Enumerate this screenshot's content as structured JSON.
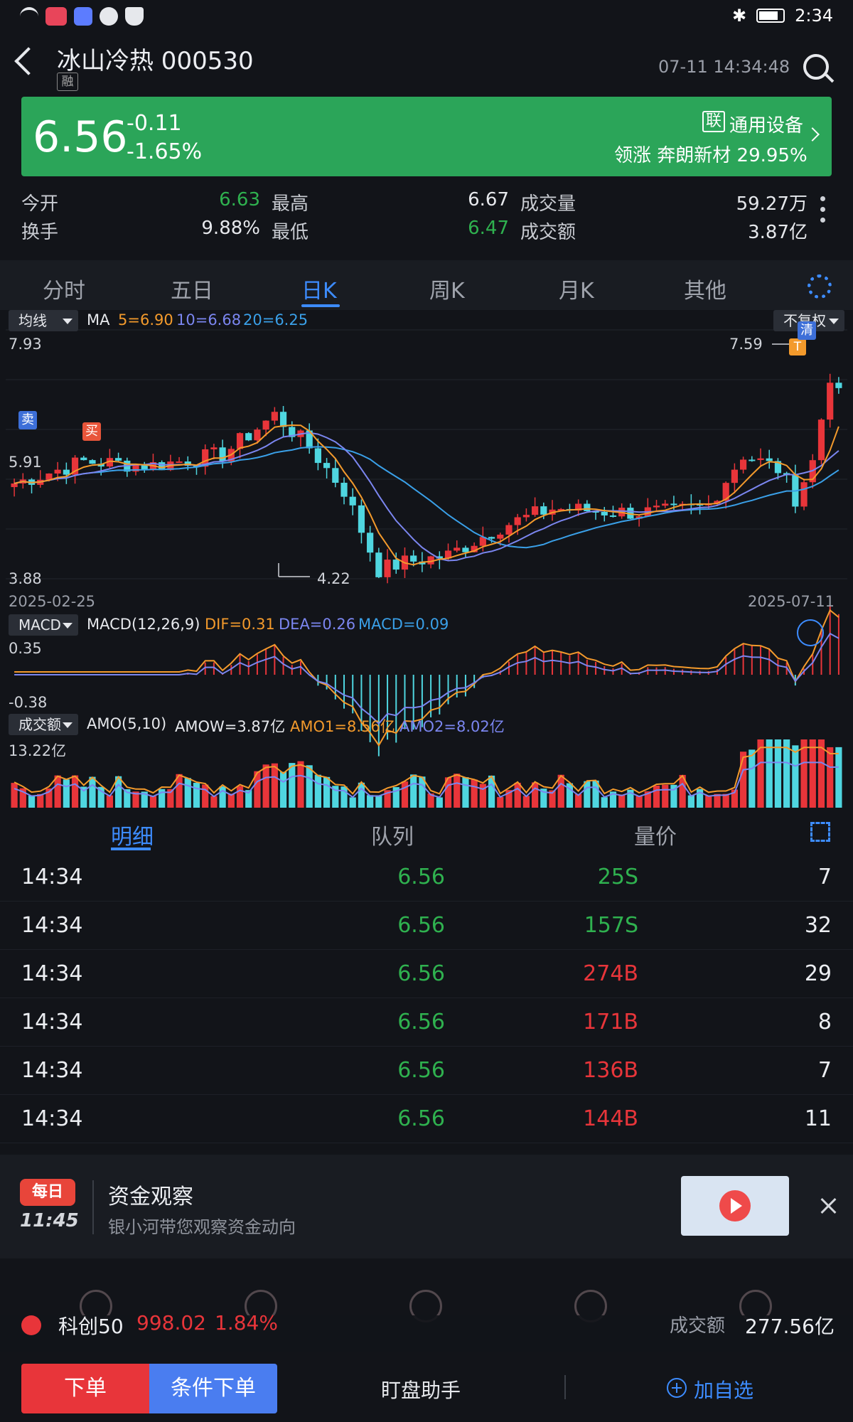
{
  "status_bar": {
    "time": "2:34"
  },
  "header": {
    "stock_name": "冰山冷热 000530",
    "margin_badge": "融",
    "timestamp": "07-11 14:34:48"
  },
  "banner": {
    "price": "6.56",
    "change": "-0.11",
    "change_pct": "-1.65%",
    "sector_badge": "联",
    "sector": "通用设备",
    "leader": "领涨 奔朗新材 29.95%"
  },
  "quote": {
    "open_label": "今开",
    "open": "6.63",
    "high_label": "最高",
    "high": "6.67",
    "volume_label": "成交量",
    "volume": "59.27万",
    "turnover_label": "换手",
    "turnover": "9.88%",
    "low_label": "最低",
    "low": "6.47",
    "amount_label": "成交额",
    "amount": "3.87亿"
  },
  "tabs": [
    "分时",
    "五日",
    "日K",
    "周K",
    "月K",
    "其他"
  ],
  "active_tab": "日K",
  "chart": {
    "ma_selector": "均线",
    "ma_label": "MA",
    "ma5": "5=6.90",
    "ma10": "10=6.68",
    "ma20": "20=6.25",
    "adjust": "不复权",
    "y_top": "7.93",
    "y_mid": "5.91",
    "y_bottom": "3.88",
    "max_label": "7.59",
    "min_label": "4.22",
    "start_date": "2025-02-25",
    "end_date": "2025-07-11",
    "sell_marker": "卖",
    "buy_marker": "买",
    "t_marker": "T",
    "clear_marker": "清",
    "macd_selector": "MACD",
    "macd_params": "MACD(12,26,9)",
    "dif": "DIF=0.31",
    "dea": "DEA=0.26",
    "macd": "MACD=0.09",
    "macd_top": "0.35",
    "macd_bottom": "-0.38",
    "vol_selector": "成交额",
    "amo_params": "AMO(5,10)",
    "amow": "AMOW=3.87亿",
    "amo1": "AMO1=8.56亿",
    "amo2": "AMO2=8.02亿",
    "vol_top": "13.22亿"
  },
  "colors": {
    "up": "#e8353a",
    "down": "#4fd6e0",
    "ma5": "#f39a2c",
    "ma10": "#7b86f0",
    "ma20": "#3aa0e8",
    "accent": "#3d8cff"
  },
  "chart_data": {
    "type": "candlestick",
    "x_range": [
      "2025-02-25",
      "2025-07-11"
    ],
    "price_axis": [
      3.88,
      7.93
    ],
    "high": 7.59,
    "low": 4.22,
    "ma": {
      "MA5": 6.9,
      "MA10": 6.68,
      "MA20": 6.25
    },
    "macd": {
      "DIF": 0.31,
      "DEA": 0.26,
      "MACD": 0.09,
      "range": [
        -0.38,
        0.35
      ]
    },
    "amount": {
      "AMOW": "3.87亿",
      "AMO1": "8.56亿",
      "AMO2": "8.02亿",
      "max": "13.22亿"
    }
  },
  "detail_tabs": [
    "明细",
    "队列",
    "量价"
  ],
  "active_detail_tab": "明细",
  "trades": [
    {
      "time": "14:34",
      "price": "6.56",
      "volume": "25S",
      "count": "7",
      "side": "S"
    },
    {
      "time": "14:34",
      "price": "6.56",
      "volume": "157S",
      "count": "32",
      "side": "S"
    },
    {
      "time": "14:34",
      "price": "6.56",
      "volume": "274B",
      "count": "29",
      "side": "B"
    },
    {
      "time": "14:34",
      "price": "6.56",
      "volume": "171B",
      "count": "8",
      "side": "B"
    },
    {
      "time": "14:34",
      "price": "6.56",
      "volume": "136B",
      "count": "7",
      "side": "B"
    },
    {
      "time": "14:34",
      "price": "6.56",
      "volume": "144B",
      "count": "11",
      "side": "B"
    }
  ],
  "promo": {
    "badge": "每日",
    "time": "11:45",
    "title": "资金观察",
    "subtitle": "银小河带您观察资金动向"
  },
  "ticker": {
    "name": "科创50",
    "value": "998.02",
    "pct": "1.84%",
    "amount_label": "成交额",
    "amount": "277.56亿"
  },
  "footer": {
    "order": "下单",
    "conditional": "条件下单",
    "assistant": "盯盘助手",
    "add_watch": "加自选"
  }
}
